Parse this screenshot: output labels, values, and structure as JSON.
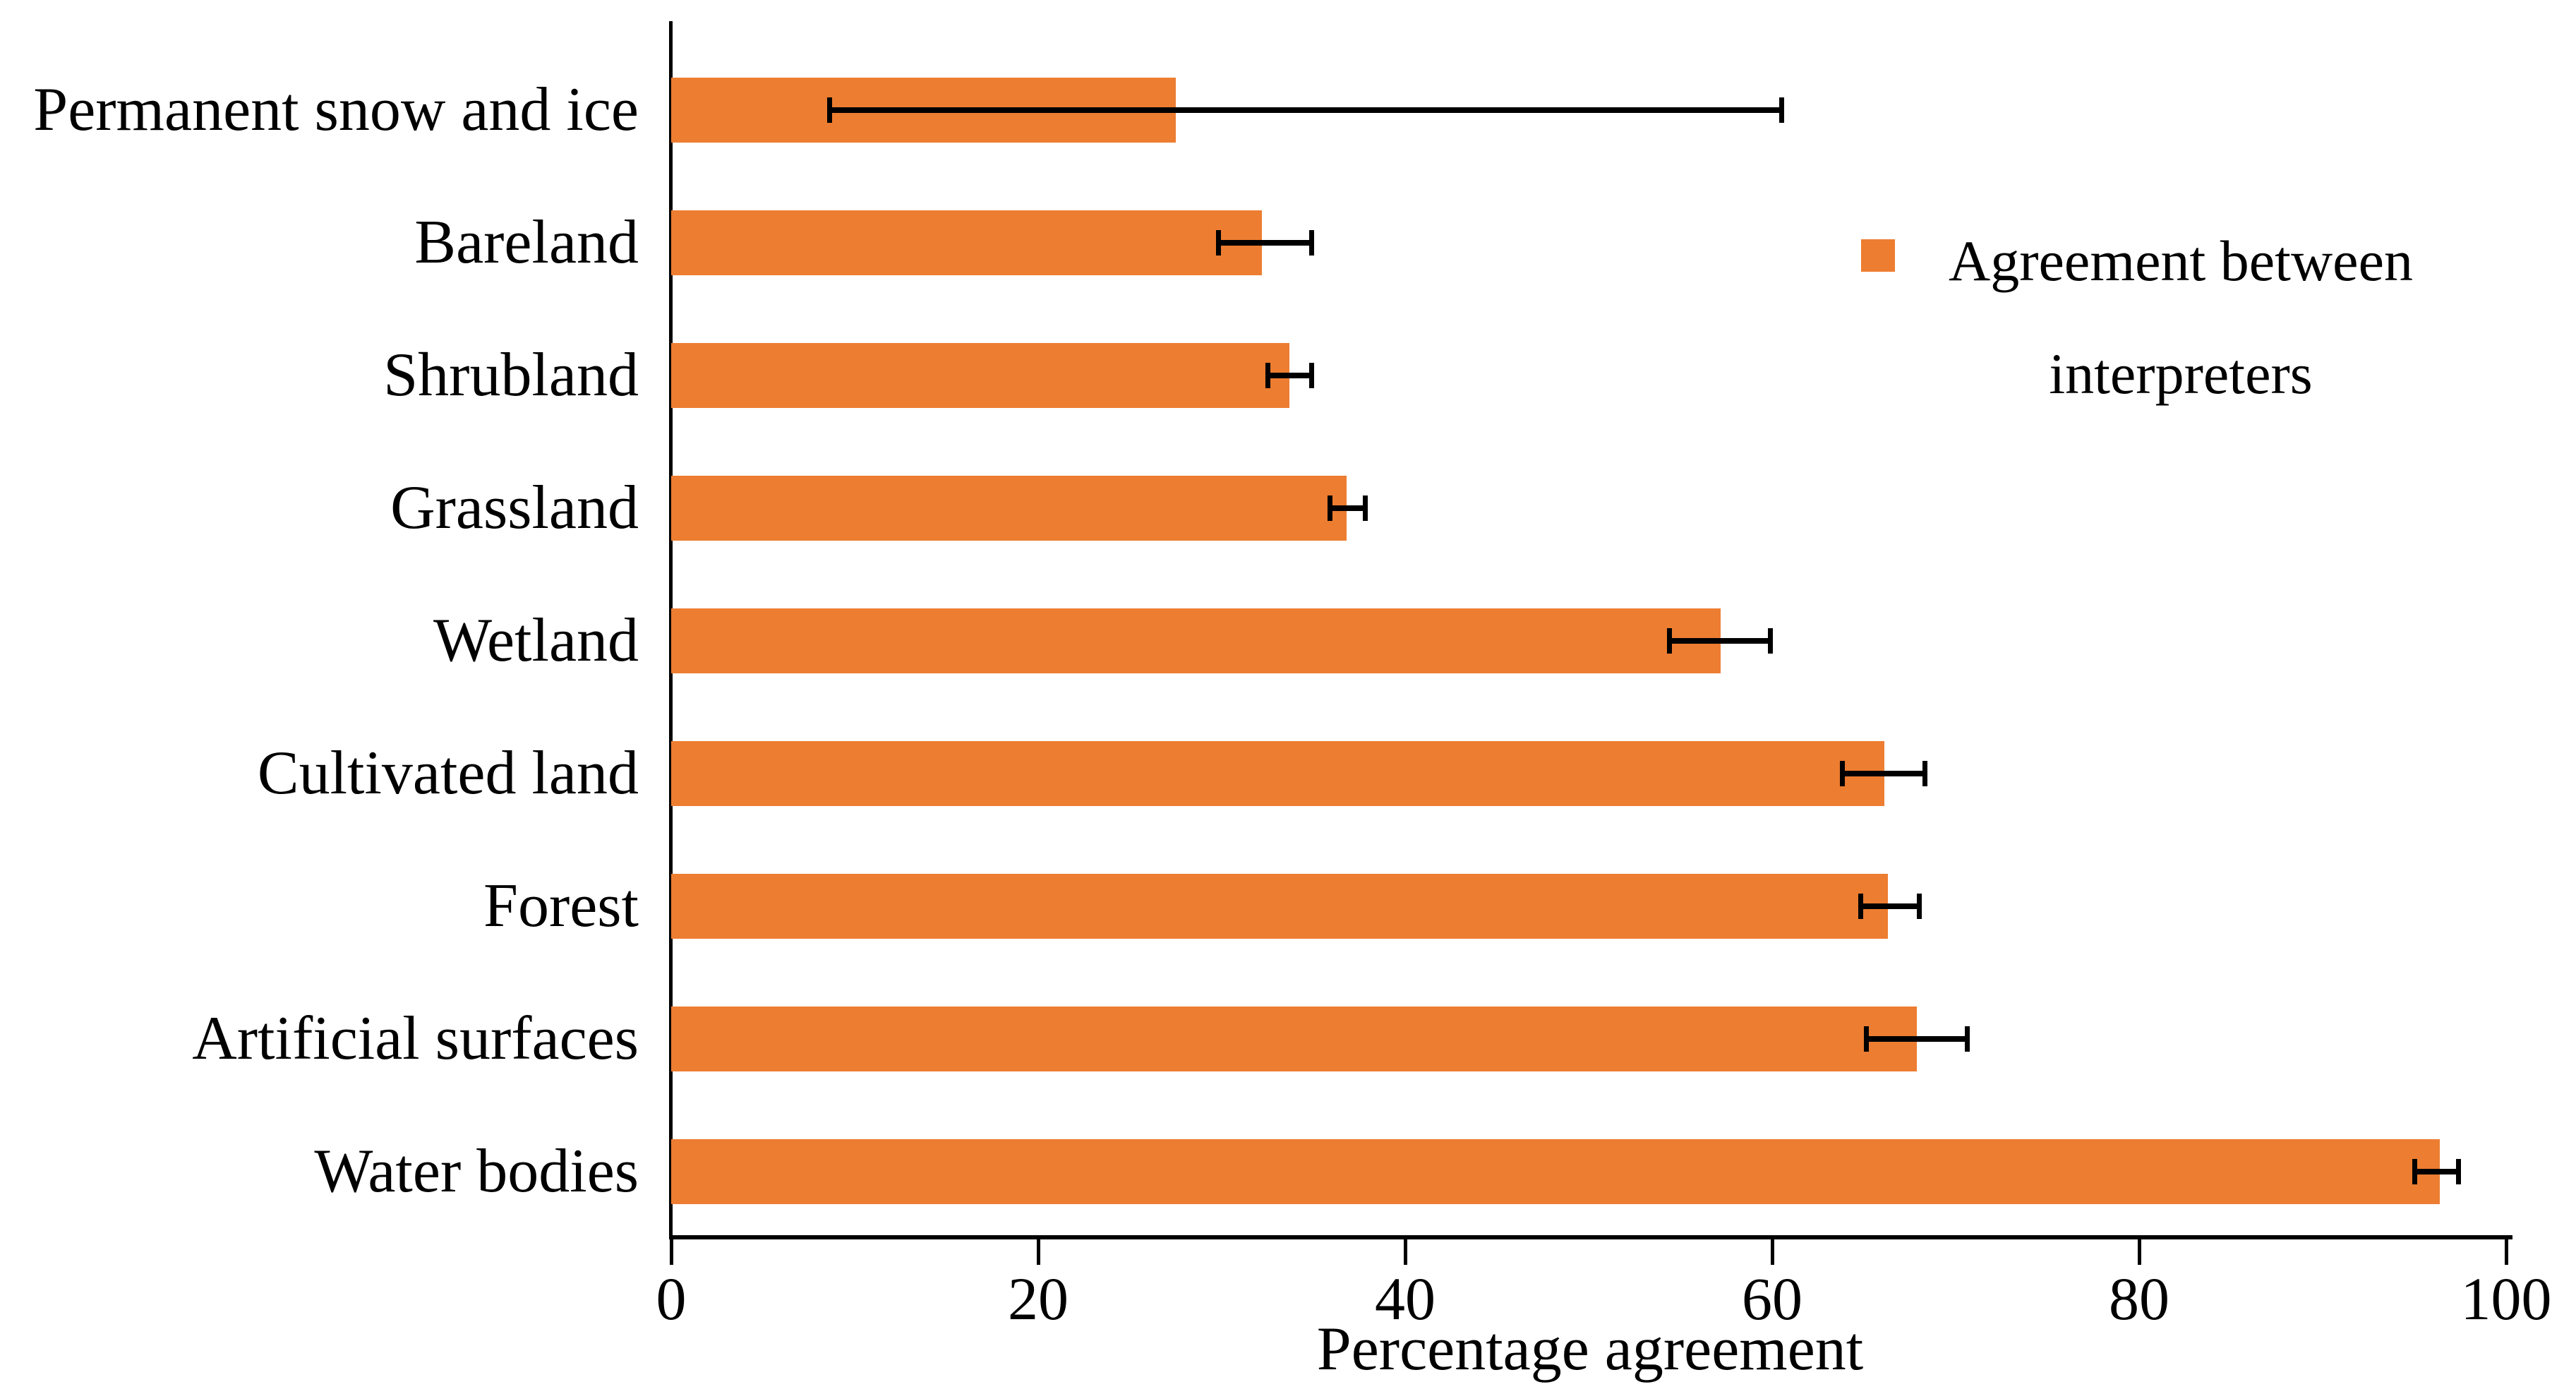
{
  "chart_data": {
    "type": "bar",
    "orientation": "horizontal",
    "title": "",
    "xlabel": "Percentage agreement",
    "ylabel": "",
    "xlim": [
      0,
      100
    ],
    "xticks": [
      0,
      20,
      40,
      60,
      80,
      100
    ],
    "grid": "off",
    "legend_position": "right",
    "categories": [
      "Permanent snow and ice",
      "Bareland",
      "Shrubland",
      "Grassland",
      "Wetland",
      "Cultivated land",
      "Forest",
      "Artificial surfaces",
      "Water bodies"
    ],
    "series": [
      {
        "name": "Agreement between interpreters",
        "values": [
          27.5,
          32.2,
          33.7,
          36.8,
          57.2,
          66.1,
          66.3,
          67.9,
          96.4
        ],
        "error_low": [
          8.6,
          29.8,
          32.5,
          35.9,
          54.4,
          63.8,
          64.8,
          65.1,
          95.0
        ],
        "error_high": [
          60.5,
          34.9,
          34.9,
          37.8,
          59.9,
          68.3,
          68.0,
          70.6,
          97.4
        ]
      }
    ],
    "bar_color": "#ED7D31",
    "error_bar_color": "#000000"
  },
  "axis": {
    "xlabel": "Percentage agreement",
    "tick_labels": [
      "0",
      "20",
      "40",
      "60",
      "80",
      "100"
    ]
  },
  "legend": {
    "line1": "Agreement between",
    "line2": "interpreters",
    "marker_color": "#ED7D31"
  },
  "colors": {
    "accent": "#ED7D31",
    "axis": "#000000",
    "text": "#000000",
    "background": "#FFFFFF"
  }
}
